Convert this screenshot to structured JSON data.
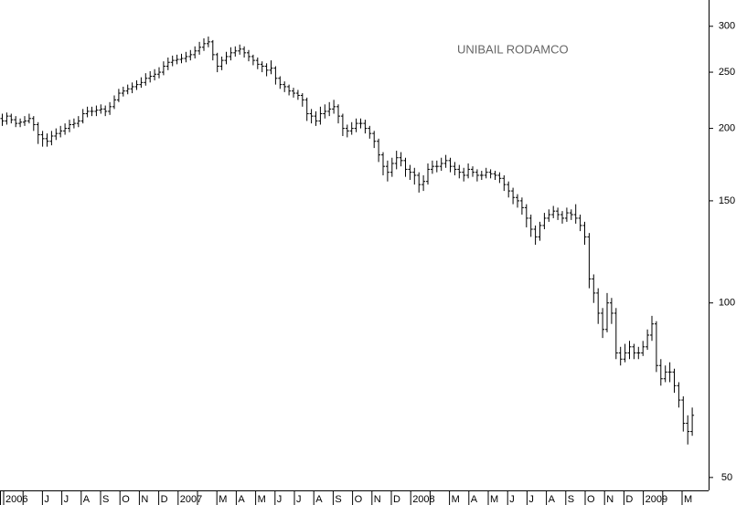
{
  "chart_data": {
    "type": "ohlc",
    "title": "UNIBAIL RODAMCO",
    "categories": [
      "2006",
      null,
      "J",
      "J",
      "A",
      "S",
      "O",
      "N",
      "D",
      "2007",
      null,
      "M",
      "A",
      "M",
      "J",
      "J",
      "A",
      "S",
      "O",
      "N",
      "D",
      "2008",
      null,
      "M",
      "A",
      "M",
      "J",
      "J",
      "A",
      "S",
      "O",
      "N",
      "D",
      "2009",
      null,
      "M"
    ],
    "open": [
      208,
      206,
      210,
      207,
      204,
      205,
      206,
      208,
      203,
      195,
      192,
      190,
      194,
      196,
      198,
      200,
      203,
      204,
      206,
      212,
      214,
      214,
      215,
      216,
      214,
      218,
      224,
      230,
      232,
      234,
      236,
      238,
      240,
      244,
      246,
      248,
      250,
      256,
      260,
      262,
      263,
      264,
      266,
      268,
      272,
      276,
      280,
      282,
      268,
      256,
      262,
      266,
      270,
      272,
      274,
      270,
      266,
      262,
      258,
      256,
      252,
      254,
      244,
      238,
      236,
      232,
      230,
      228,
      224,
      212,
      210,
      206,
      212,
      214,
      216,
      218,
      210,
      200,
      198,
      200,
      204,
      204,
      200,
      196,
      190,
      180,
      172,
      168,
      174,
      178,
      176,
      170,
      168,
      166,
      160,
      162,
      170,
      172,
      172,
      174,
      176,
      172,
      170,
      168,
      166,
      170,
      168,
      166,
      166,
      168,
      167,
      166,
      164,
      160,
      156,
      152,
      150,
      146,
      140,
      134,
      130,
      136,
      140,
      142,
      144,
      142,
      140,
      143,
      142,
      140,
      136,
      130,
      110,
      104,
      96,
      90,
      100,
      96,
      82,
      80,
      82,
      84,
      82,
      82,
      84,
      88,
      92,
      78,
      74,
      76,
      76,
      72,
      68,
      62,
      60
    ],
    "high": [
      212,
      213,
      212,
      210,
      208,
      210,
      212,
      210,
      205,
      198,
      196,
      198,
      200,
      202,
      204,
      207,
      208,
      210,
      216,
      218,
      218,
      219,
      220,
      219,
      222,
      228,
      234,
      236,
      238,
      240,
      242,
      245,
      249,
      251,
      253,
      255,
      261,
      265,
      267,
      268,
      269,
      271,
      273,
      277,
      282,
      286,
      288,
      284,
      270,
      266,
      271,
      276,
      277,
      279,
      277,
      273,
      268,
      265,
      261,
      259,
      262,
      256,
      246,
      241,
      238,
      235,
      233,
      230,
      226,
      216,
      214,
      218,
      220,
      222,
      224,
      220,
      212,
      203,
      205,
      208,
      208,
      207,
      202,
      198,
      192,
      182,
      176,
      178,
      183,
      182,
      178,
      173,
      171,
      168,
      166,
      174,
      176,
      176,
      178,
      180,
      178,
      175,
      173,
      171,
      174,
      172,
      170,
      169,
      171,
      170,
      169,
      168,
      166,
      162,
      158,
      154,
      152,
      148,
      142,
      136,
      138,
      143,
      145,
      147,
      146,
      144,
      146,
      145,
      148,
      142,
      138,
      132,
      112,
      106,
      98,
      104,
      102,
      98,
      84,
      85,
      86,
      85,
      84,
      86,
      90,
      95,
      93,
      80,
      78,
      79,
      77,
      73,
      69,
      64,
      66
    ],
    "low": [
      202,
      203,
      204,
      201,
      201,
      202,
      204,
      198,
      188,
      186,
      186,
      187,
      191,
      193,
      195,
      197,
      200,
      201,
      204,
      209,
      210,
      210,
      212,
      210,
      211,
      216,
      222,
      227,
      229,
      230,
      233,
      235,
      237,
      240,
      242,
      244,
      247,
      252,
      256,
      258,
      259,
      260,
      262,
      264,
      268,
      272,
      276,
      262,
      250,
      252,
      258,
      262,
      266,
      268,
      265,
      261,
      257,
      253,
      250,
      246,
      248,
      238,
      234,
      231,
      228,
      226,
      224,
      218,
      206,
      204,
      202,
      203,
      208,
      210,
      212,
      204,
      194,
      193,
      195,
      197,
      200,
      196,
      192,
      185,
      175,
      166,
      162,
      165,
      170,
      172,
      165,
      163,
      160,
      155,
      156,
      160,
      167,
      168,
      169,
      171,
      168,
      166,
      164,
      162,
      164,
      165,
      162,
      163,
      164,
      164,
      163,
      161,
      156,
      152,
      148,
      146,
      142,
      135,
      130,
      126,
      128,
      134,
      138,
      140,
      139,
      137,
      138,
      139,
      137,
      133,
      126,
      106,
      100,
      92,
      87,
      89,
      92,
      80,
      78,
      79,
      80,
      80,
      80,
      81,
      83,
      86,
      76,
      72,
      73,
      73,
      70,
      66,
      60,
      57,
      59
    ],
    "close": [
      206,
      210,
      207,
      204,
      205,
      206,
      208,
      203,
      195,
      192,
      190,
      194,
      196,
      198,
      200,
      203,
      204,
      206,
      212,
      214,
      214,
      215,
      216,
      214,
      218,
      224,
      230,
      232,
      234,
      236,
      238,
      240,
      244,
      246,
      248,
      250,
      256,
      260,
      262,
      263,
      264,
      266,
      268,
      272,
      276,
      280,
      282,
      268,
      256,
      262,
      266,
      270,
      272,
      274,
      270,
      266,
      262,
      258,
      256,
      252,
      254,
      244,
      238,
      236,
      232,
      230,
      228,
      224,
      212,
      210,
      206,
      212,
      214,
      216,
      218,
      210,
      200,
      198,
      200,
      204,
      204,
      200,
      196,
      190,
      180,
      172,
      168,
      174,
      178,
      176,
      170,
      168,
      166,
      160,
      162,
      170,
      172,
      172,
      174,
      176,
      172,
      170,
      168,
      166,
      170,
      168,
      166,
      166,
      168,
      167,
      166,
      164,
      160,
      156,
      152,
      150,
      146,
      140,
      134,
      130,
      136,
      140,
      142,
      144,
      142,
      140,
      143,
      142,
      140,
      136,
      130,
      110,
      104,
      96,
      90,
      100,
      96,
      82,
      80,
      82,
      84,
      82,
      82,
      84,
      88,
      92,
      78,
      74,
      76,
      76,
      72,
      68,
      62,
      60,
      64
    ],
    "ylim": [
      47.5,
      333
    ],
    "yticks": [
      50,
      100,
      150,
      200,
      250,
      300
    ],
    "log_scale": true,
    "color": "#000000"
  }
}
